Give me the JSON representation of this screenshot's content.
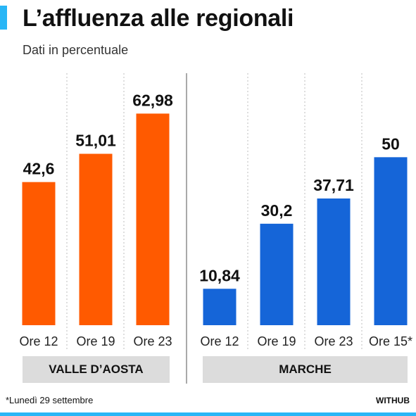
{
  "title": "L’affluenza alle regionali",
  "subtitle": "Dati in percentuale",
  "footnote": "*Lunedì 29 settembre",
  "brand": "WITHUB",
  "colors": {
    "valle_daosta": "#ff5a00",
    "marche": "#1565d8",
    "accent": "#29b6f6",
    "label_box": "#dcdcdc"
  },
  "chart_data": [
    {
      "type": "bar",
      "group": "VALLE D’AOSTA",
      "categories": [
        "Ore 12",
        "Ore 19",
        "Ore 23"
      ],
      "values": [
        42.6,
        51.01,
        62.98
      ],
      "value_labels": [
        "42,6",
        "51,01",
        "62,98"
      ],
      "ylim": [
        0,
        75
      ],
      "grid": "vertical dotted separators"
    },
    {
      "type": "bar",
      "group": "MARCHE",
      "categories": [
        "Ore 12",
        "Ore 19",
        "Ore 23",
        "Ore 15*"
      ],
      "values": [
        10.84,
        30.2,
        37.71,
        50
      ],
      "value_labels": [
        "10,84",
        "30,2",
        "37,71",
        "50"
      ],
      "ylim": [
        0,
        75
      ],
      "grid": "vertical dotted separators"
    }
  ]
}
